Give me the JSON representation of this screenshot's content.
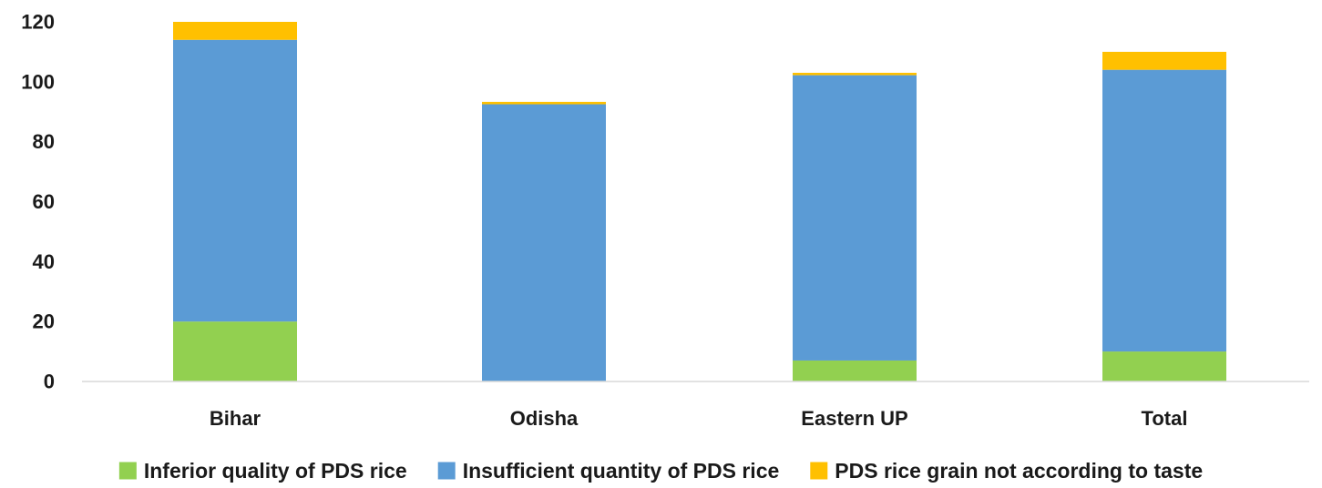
{
  "chart_data": {
    "type": "bar",
    "stacked": true,
    "categories": [
      "Bihar",
      "Odisha",
      "Eastern UP",
      "Total"
    ],
    "series": [
      {
        "name": "Inferior quality of PDS rice",
        "color": "#92d050",
        "values": [
          20,
          0,
          7,
          10
        ]
      },
      {
        "name": "Insufficient quantity of PDS rice",
        "color": "#5b9bd5",
        "values": [
          94,
          92.5,
          95.2,
          94
        ]
      },
      {
        "name": "PDS rice grain not according to taste",
        "color": "#ffc000",
        "values": [
          6,
          0.8,
          0.8,
          6
        ]
      }
    ],
    "ylim": [
      0,
      120
    ],
    "yticks": [
      0,
      20,
      40,
      60,
      80,
      100,
      120
    ],
    "grid": false,
    "legend": "bottom"
  }
}
